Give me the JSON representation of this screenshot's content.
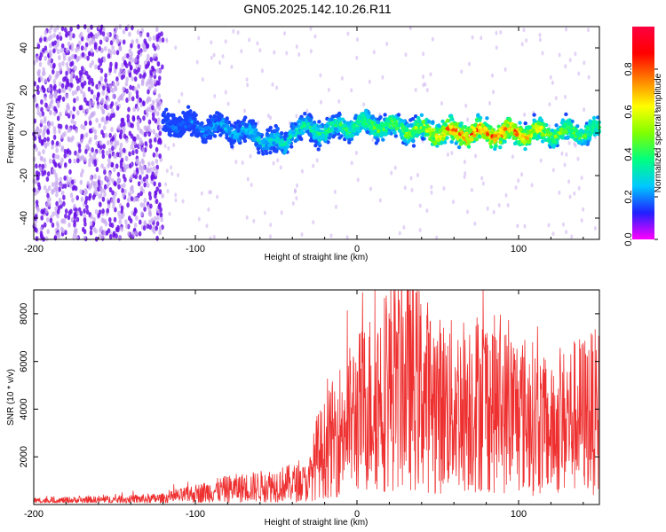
{
  "title": "GN05.2025.142.10.26.R11",
  "colors": {
    "snr_line": "#ee3030",
    "axis": "#000000",
    "scatter_faint": "#c8a8f0",
    "scatter_strong": "#6a10e8",
    "colorbar": [
      "#ff00ff",
      "#2020ff",
      "#00c8ff",
      "#00ff80",
      "#80ff00",
      "#ffff00",
      "#ff8000",
      "#ff0000",
      "#ff0040"
    ]
  },
  "chart_data": [
    {
      "type": "heatmap",
      "xlabel": "Height of straight line (km)",
      "ylabel": "Frequency (Hz)",
      "xlim": [
        -200,
        150
      ],
      "ylim": [
        -50,
        50
      ],
      "x_ticks": [
        -200,
        -100,
        0,
        100
      ],
      "y_ticks": [
        -40,
        -20,
        0,
        20,
        40
      ],
      "colorbar": {
        "label": "Normalized spectral amplitude",
        "range": [
          0,
          1
        ],
        "ticks": [
          0.0,
          0.2,
          0.4,
          0.6,
          0.8
        ]
      },
      "noise_region": {
        "x_range": [
          -200,
          -120
        ],
        "freq_range": [
          -50,
          50
        ],
        "amplitude": [
          0.05,
          0.2
        ]
      },
      "signal_track": {
        "x": [
          -120,
          -100,
          -80,
          -60,
          -45,
          -40,
          -20,
          0,
          20,
          40,
          60,
          80,
          100,
          120,
          150
        ],
        "freq": [
          5,
          3,
          2,
          -2,
          -6,
          2,
          1,
          4,
          3,
          1,
          0,
          0,
          0,
          0,
          1
        ],
        "amplitude": [
          0.2,
          0.25,
          0.3,
          0.35,
          0.4,
          0.4,
          0.45,
          0.5,
          0.55,
          0.65,
          0.95,
          0.9,
          0.9,
          0.6,
          0.5
        ]
      },
      "grid": false,
      "legend": "right"
    },
    {
      "type": "line",
      "xlabel": "Height of straight line (km)",
      "ylabel": "SNR (10 * v/v)",
      "xlim": [
        -200,
        150
      ],
      "ylim": [
        0,
        9000
      ],
      "x_ticks": [
        -200,
        -100,
        0,
        100
      ],
      "y_ticks": [
        2000,
        4000,
        6000,
        8000
      ],
      "series": [
        {
          "x": [
            -200,
            -150,
            -120,
            -110,
            -100,
            -80,
            -60,
            -40,
            -30,
            -25,
            -20,
            -10,
            0,
            10,
            20,
            30,
            40,
            50,
            60,
            70,
            80,
            90,
            100,
            110,
            120,
            130,
            140,
            150
          ],
          "values": [
            150,
            200,
            250,
            350,
            450,
            650,
            750,
            900,
            900,
            2000,
            2300,
            3200,
            3800,
            4400,
            5000,
            5200,
            4800,
            4200,
            4100,
            4300,
            4400,
            4000,
            3900,
            3600,
            3000,
            3600,
            3800,
            3900
          ]
        }
      ],
      "grid": false
    }
  ]
}
